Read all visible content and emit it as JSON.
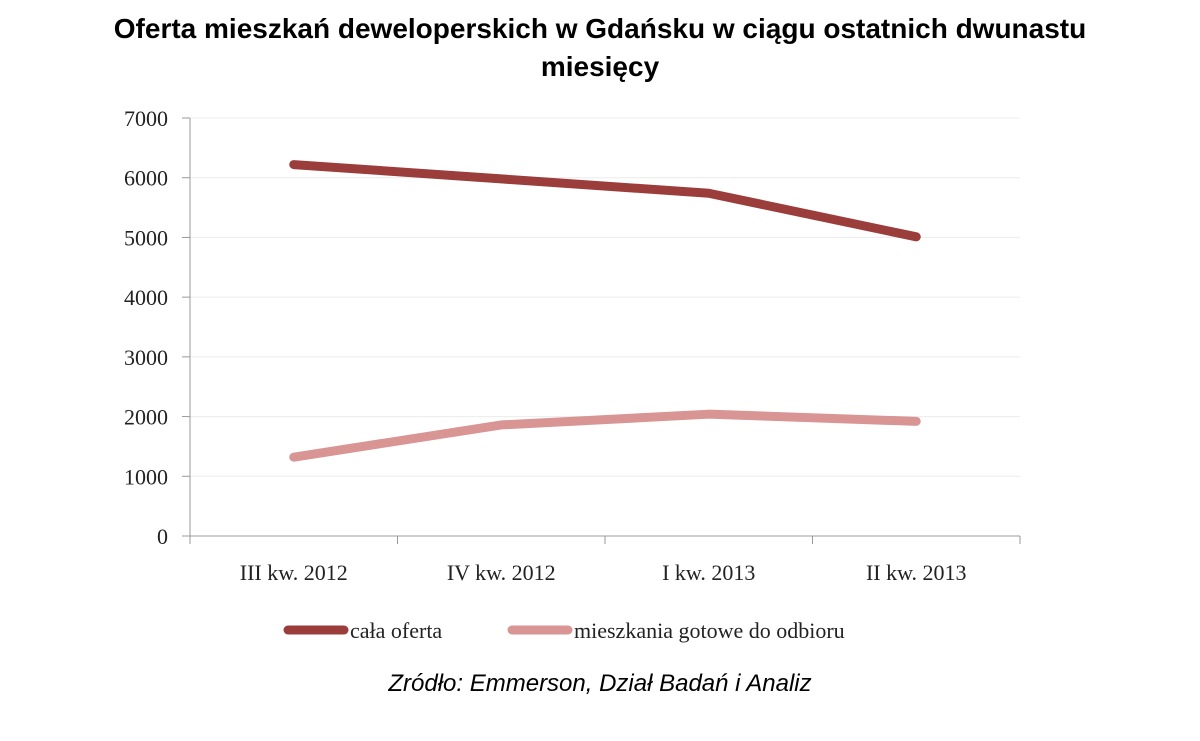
{
  "chart_data": {
    "type": "line",
    "title_line1": "Oferta mieszkań deweloperskich w Gdańsku w ciągu ostatnich dwunastu",
    "title_line2": "miesięcy",
    "categories": [
      "III kw. 2012",
      "IV kw. 2012",
      "I kw. 2013",
      "II kw. 2013"
    ],
    "ylim": [
      0,
      7000
    ],
    "yticks": [
      0,
      1000,
      2000,
      3000,
      4000,
      5000,
      6000,
      7000
    ],
    "grid": true,
    "legend_position": "bottom",
    "series": [
      {
        "name": "cała oferta",
        "values": [
          6220,
          5980,
          5740,
          5010
        ],
        "color": "#9b3d3b"
      },
      {
        "name": "mieszkania gotowe do odbioru",
        "values": [
          1320,
          1860,
          2040,
          1920
        ],
        "color": "#d89593"
      }
    ],
    "source": "Zródło: Emmerson, Dział Badań i Analiz"
  }
}
